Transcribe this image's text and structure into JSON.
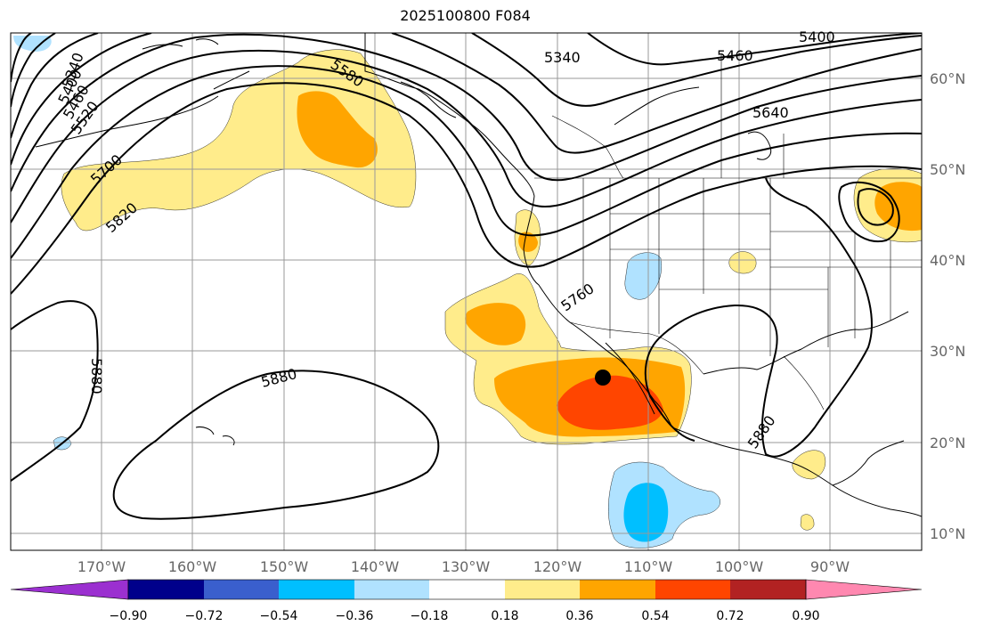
{
  "title": "2025100800 F084",
  "lat_labels": [
    "60°N",
    "50°N",
    "40°N",
    "30°N",
    "20°N",
    "10°N"
  ],
  "lon_labels": [
    "170°W",
    "160°W",
    "150°W",
    "140°W",
    "130°W",
    "120°W",
    "110°W",
    "100°W",
    "90°W"
  ],
  "contour_labels": [
    "5340",
    "5400",
    "5460",
    "5520",
    "5580",
    "5700",
    "5820",
    "5340",
    "5460",
    "5640",
    "5400",
    "5760",
    "5880",
    "5880",
    "5880"
  ],
  "colorbar": {
    "ticks": [
      "−0.90",
      "−0.72",
      "−0.54",
      "−0.36",
      "−0.18",
      "0.18",
      "0.36",
      "0.54",
      "0.72",
      "0.90"
    ],
    "colors": [
      "#9b30d0",
      "#00008b",
      "#3a5fcd",
      "#00bfff",
      "#b0e2ff",
      "#ffffff",
      "#ffec8b",
      "#ffa500",
      "#ff4500",
      "#b22222",
      "#ff88b0"
    ]
  },
  "marker": "storm-center-dot"
}
